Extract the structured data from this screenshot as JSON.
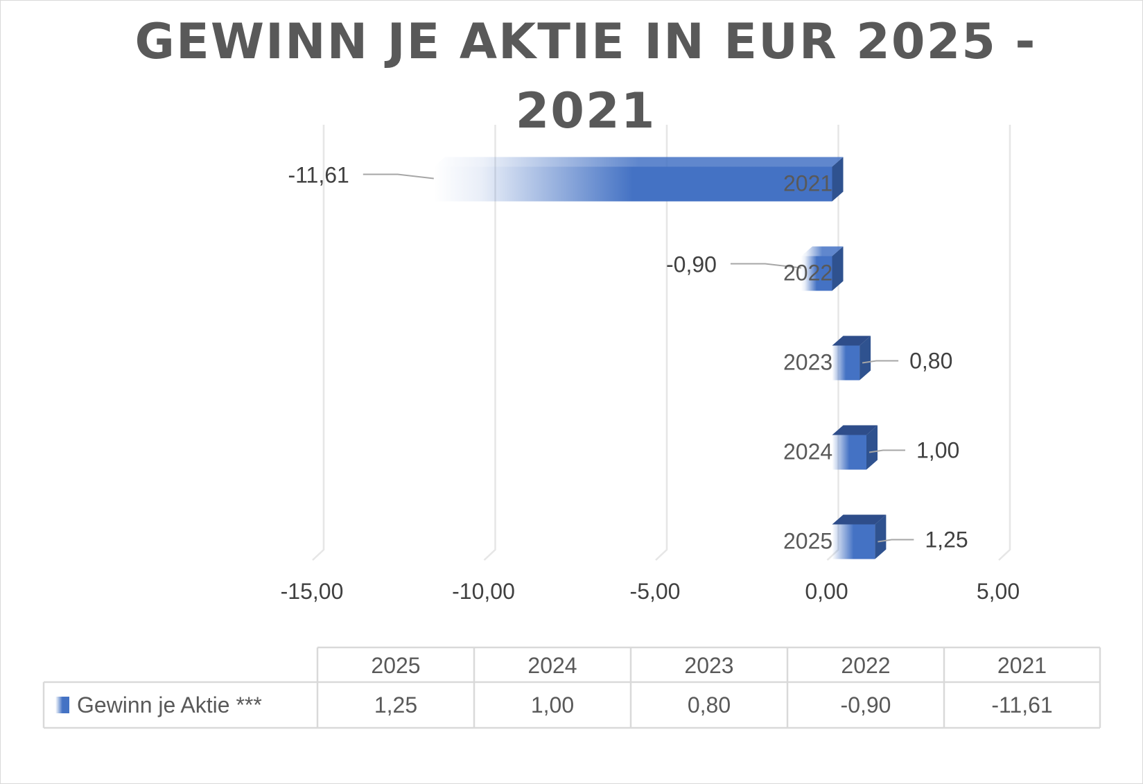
{
  "chart_data": {
    "type": "bar",
    "orientation": "horizontal",
    "style": "3d-gradient",
    "title": "GEWINN JE AKTIE IN EUR 2025 - 2021",
    "title_lines": [
      "GEWINN JE AKTIE IN EUR 2025 -",
      "2021"
    ],
    "categories": [
      "2021",
      "2022",
      "2023",
      "2024",
      "2025"
    ],
    "series": [
      {
        "name": "Gewinn je Aktie ***",
        "values": [
          -11.61,
          -0.9,
          0.8,
          1.0,
          1.25
        ],
        "color": "#4472C4"
      }
    ],
    "data_labels": [
      "-11,61",
      "-0,90",
      "0,80",
      "1,00",
      "1,25"
    ],
    "x_ticks": [
      "-15,00",
      "-10,00",
      "-5,00",
      "0,00",
      "5,00"
    ],
    "xlim": [
      -15,
      5
    ],
    "gridlines": true,
    "legend": "data-table-bottom",
    "data_table": {
      "columns": [
        "2025",
        "2024",
        "2023",
        "2022",
        "2021"
      ],
      "series_label": "Gewinn je Aktie ***",
      "values": [
        "1,25",
        "1,00",
        "0,80",
        "-0,90",
        "-11,61"
      ]
    }
  },
  "colors": {
    "bar_front": "#4472C4",
    "bar_side": "#2F528F",
    "bar_top": "#2E4D8A",
    "grid": "#e6e6e6",
    "text": "#595959",
    "leader": "#a6a6a6"
  }
}
